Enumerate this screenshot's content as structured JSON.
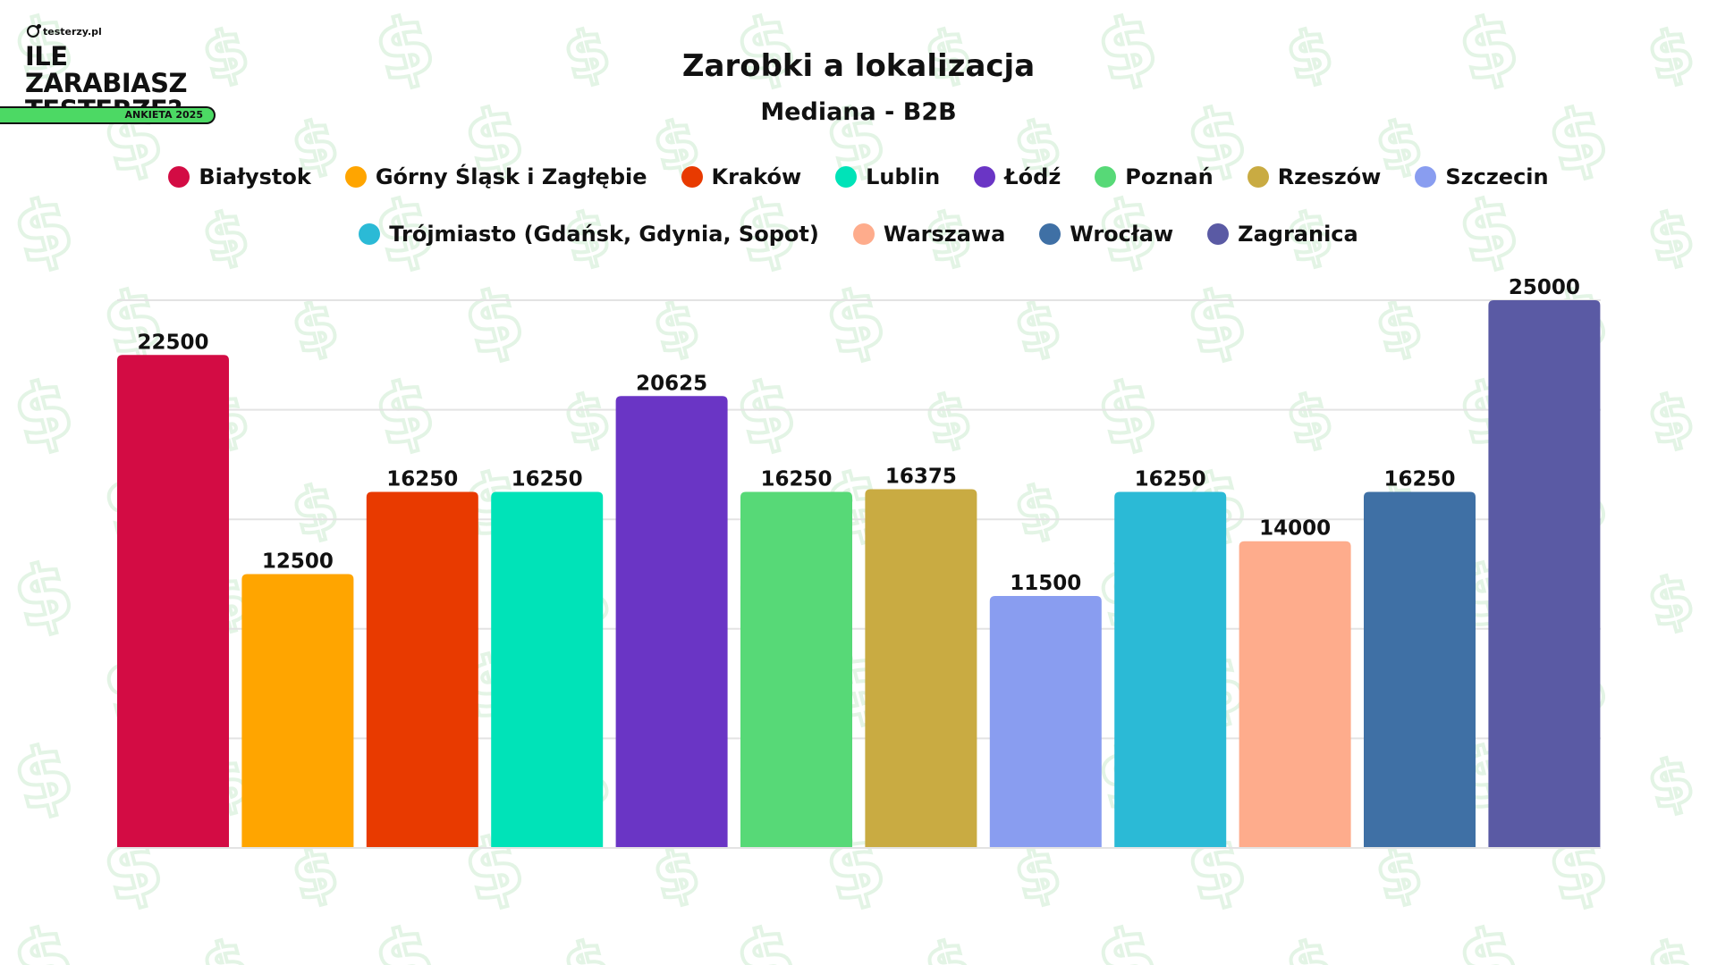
{
  "logo": {
    "brand": "testerzy.pl",
    "title_line1": "ILE ZARABIASZ",
    "title_line2": "TESTERZE?",
    "badge": "ANKIETA 2025"
  },
  "background_icon": "dollar-sign-icon",
  "chart_data": {
    "type": "bar",
    "title": "Zarobki a lokalizacja",
    "subtitle": "Mediana - B2B",
    "xlabel": "",
    "ylabel": "",
    "ylim": [
      0,
      25000
    ],
    "grid": true,
    "legend_position": "top",
    "categories": [
      "Białystok",
      "Górny Śląsk i Zagłębie",
      "Kraków",
      "Lublin",
      "Łódź",
      "Poznań",
      "Rzeszów",
      "Szczecin",
      "Trójmiasto (Gdańsk, Gdynia, Sopot)",
      "Warszawa",
      "Wrocław",
      "Zagranica"
    ],
    "values": [
      22500,
      12500,
      16250,
      16250,
      20625,
      16250,
      16375,
      11500,
      16250,
      14000,
      16250,
      25000
    ],
    "colors": [
      "#d30c44",
      "#ffa500",
      "#e83a00",
      "#00e3b8",
      "#6a35c5",
      "#57d977",
      "#c9ab42",
      "#899df0",
      "#2bbad6",
      "#feac8c",
      "#3f70a5",
      "#5a5aa4"
    ]
  }
}
